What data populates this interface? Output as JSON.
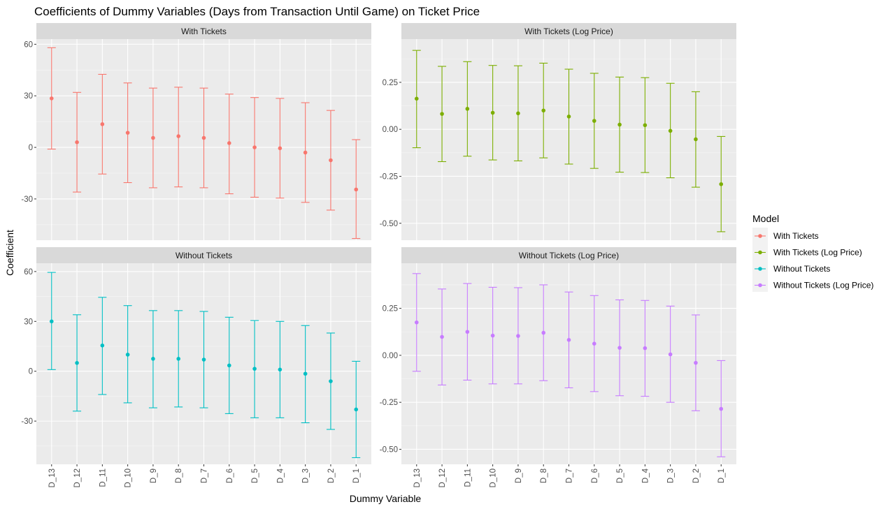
{
  "chart_data": {
    "type": "errorbar",
    "title": "Coefficients of Dummy Variables (Days from Transaction Until Game) on Ticket Price",
    "xlabel": "Dummy Variable",
    "ylabel": "Coefficient",
    "categories": [
      "D_13",
      "D_12",
      "D_11",
      "D_10",
      "D_9",
      "D_8",
      "D_7",
      "D_6",
      "D_5",
      "D_4",
      "D_3",
      "D_2",
      "D_1"
    ],
    "legend": {
      "title": "Model",
      "position": "right",
      "entries": [
        "With Tickets",
        "With Tickets (Log Price)",
        "Without Tickets",
        "Without Tickets (Log Price)"
      ]
    },
    "grid": true,
    "panels": [
      {
        "name": "With Tickets",
        "color": "#F8766D",
        "ylim": [
          -54,
          63
        ],
        "yticks": [
          -30,
          0,
          30,
          60
        ],
        "estimate": [
          28.5,
          3,
          13.5,
          8.5,
          5.5,
          6.5,
          5.5,
          2.5,
          0,
          -0.5,
          -3,
          -7.5,
          -24.5
        ],
        "lower": [
          -1,
          -26,
          -15.5,
          -20.5,
          -23.5,
          -23,
          -23.5,
          -27,
          -29,
          -29.5,
          -32,
          -36.5,
          -53
        ],
        "upper": [
          58,
          32,
          42.5,
          37.5,
          34.5,
          35,
          34.5,
          31,
          29,
          28.5,
          26,
          21.5,
          4.5
        ]
      },
      {
        "name": "With Tickets (Log Price)",
        "color": "#7CAE00",
        "ylim": [
          -0.59,
          0.48
        ],
        "yticks": [
          -0.5,
          -0.25,
          0.0,
          0.25
        ],
        "estimate": [
          0.163,
          0.082,
          0.109,
          0.088,
          0.085,
          0.1,
          0.068,
          0.045,
          0.025,
          0.022,
          -0.008,
          -0.053,
          -0.292
        ],
        "lower": [
          -0.098,
          -0.172,
          -0.143,
          -0.163,
          -0.168,
          -0.152,
          -0.185,
          -0.208,
          -0.228,
          -0.23,
          -0.258,
          -0.308,
          -0.545
        ],
        "upper": [
          0.42,
          0.335,
          0.36,
          0.34,
          0.338,
          0.352,
          0.32,
          0.298,
          0.278,
          0.275,
          0.245,
          0.2,
          -0.038
        ]
      },
      {
        "name": "Without Tickets",
        "color": "#00BFC4",
        "ylim": [
          -56,
          65
        ],
        "yticks": [
          -30,
          0,
          30,
          60
        ],
        "estimate": [
          30,
          5,
          15.5,
          10,
          7.5,
          7.5,
          7,
          3.5,
          1.5,
          1,
          -1.5,
          -6,
          -23
        ],
        "lower": [
          1,
          -24,
          -14,
          -19,
          -22,
          -21.5,
          -22,
          -25.5,
          -28,
          -28,
          -31,
          -35,
          -52
        ],
        "upper": [
          59.5,
          34,
          44.5,
          39.5,
          36.5,
          36.5,
          36,
          32.5,
          30.5,
          30,
          27.5,
          23,
          6
        ]
      },
      {
        "name": "Without Tickets (Log Price)",
        "color": "#C77CFF",
        "ylim": [
          -0.58,
          0.49
        ],
        "yticks": [
          -0.5,
          -0.25,
          0.0,
          0.25
        ],
        "estimate": [
          0.175,
          0.098,
          0.125,
          0.105,
          0.103,
          0.12,
          0.082,
          0.062,
          0.04,
          0.038,
          0.005,
          -0.04,
          -0.285
        ],
        "lower": [
          -0.085,
          -0.158,
          -0.132,
          -0.152,
          -0.152,
          -0.135,
          -0.173,
          -0.193,
          -0.215,
          -0.218,
          -0.25,
          -0.295,
          -0.54
        ],
        "upper": [
          0.435,
          0.353,
          0.382,
          0.362,
          0.36,
          0.375,
          0.337,
          0.318,
          0.295,
          0.292,
          0.262,
          0.215,
          -0.028
        ]
      }
    ]
  }
}
